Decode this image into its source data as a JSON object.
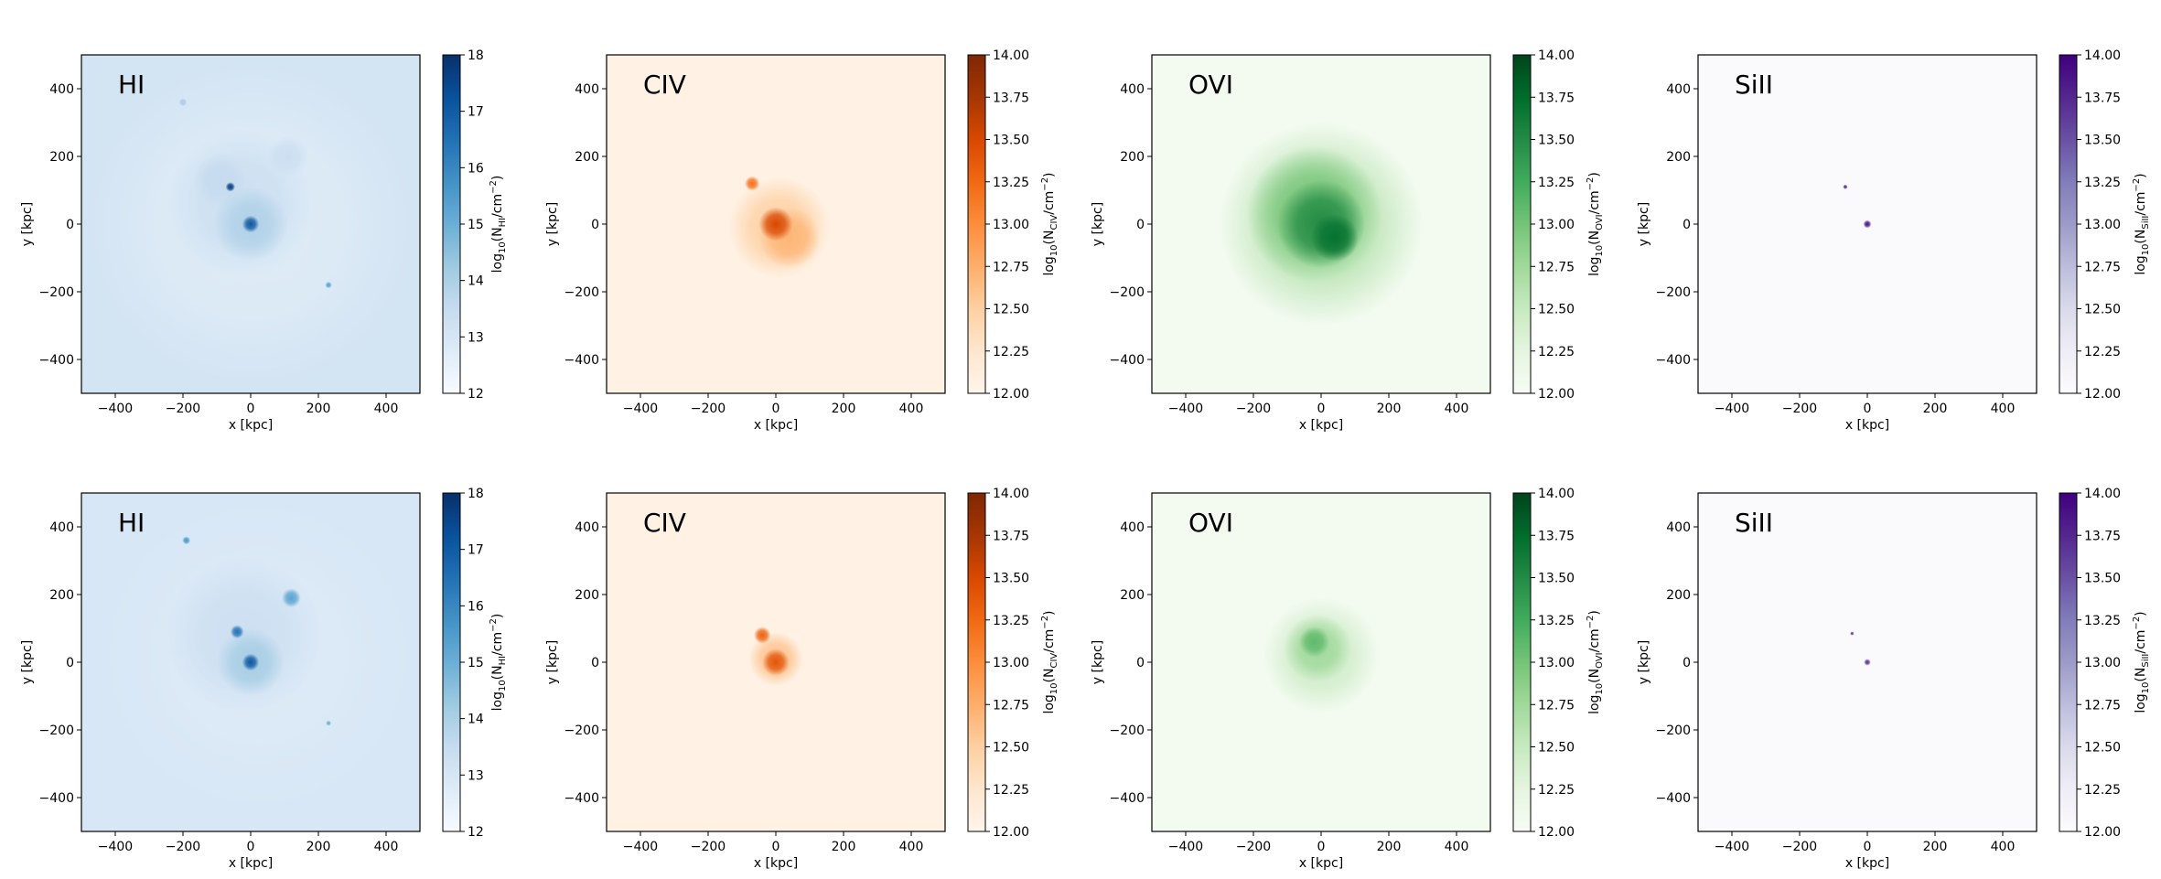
{
  "figure": {
    "rows": 2,
    "cols": 4
  },
  "colormaps": {
    "Blues": [
      "#f7fbff",
      "#deebf7",
      "#c6dbef",
      "#9ecae1",
      "#6baed6",
      "#4292c6",
      "#2171b5",
      "#08519c",
      "#08306b"
    ],
    "Oranges": [
      "#fff5eb",
      "#fee6ce",
      "#fdd0a2",
      "#fdae6b",
      "#fd8d3c",
      "#f16913",
      "#d94801",
      "#a63603",
      "#7f2704"
    ],
    "Greens": [
      "#f7fcf5",
      "#e5f5e0",
      "#c7e9c0",
      "#a1d99b",
      "#74c476",
      "#41ab5d",
      "#238b45",
      "#006d2c",
      "#00441b"
    ],
    "Purples": [
      "#fcfbfd",
      "#efedf5",
      "#dadaeb",
      "#bcbddc",
      "#9e9ac8",
      "#807dba",
      "#6a51a3",
      "#54278f",
      "#3f007d"
    ]
  },
  "chart_data": [
    {
      "type": "heatmap",
      "row": 0,
      "col": 0,
      "title": "HI",
      "cmap": "Blues",
      "xlabel": "x [kpc]",
      "ylabel": "y [kpc]",
      "xlim": [
        -500,
        500
      ],
      "ylim": [
        -500,
        500
      ],
      "xticks": [
        -400,
        -200,
        0,
        200,
        400
      ],
      "xtick_labels": [
        "−400",
        "−200",
        "0",
        "200",
        "400"
      ],
      "yticks": [
        -400,
        -200,
        0,
        200,
        400
      ],
      "ytick_labels": [
        "−400",
        "−200",
        "0",
        "200",
        "400"
      ],
      "colorbar": {
        "label": "log10(N_HI/cm^-2)",
        "label_main": "log",
        "label_sub1": "10",
        "label_mid": "(N",
        "label_sub2": "HI",
        "label_tail": "/cm",
        "label_sup": "−2",
        "label_end": ")",
        "range": [
          12,
          18
        ],
        "ticks": [
          12,
          13,
          14,
          15,
          16,
          17,
          18
        ],
        "tick_labels": [
          "12",
          "13",
          "14",
          "15",
          "16",
          "17",
          "18"
        ]
      },
      "background_level": 0.18,
      "features": [
        {
          "x": 0,
          "y": 0,
          "r": 480,
          "level": 0.12
        },
        {
          "x": -30,
          "y": 60,
          "r": 220,
          "level": 0.22
        },
        {
          "x": -90,
          "y": 130,
          "r": 80,
          "level": 0.25
        },
        {
          "x": 110,
          "y": 200,
          "r": 60,
          "level": 0.22
        },
        {
          "x": 0,
          "y": 0,
          "r": 110,
          "level": 0.32
        },
        {
          "x": 0,
          "y": 0,
          "r": 25,
          "level": 0.85
        },
        {
          "x": -60,
          "y": 110,
          "r": 14,
          "level": 0.95
        },
        {
          "x": 230,
          "y": -180,
          "r": 10,
          "level": 0.55
        },
        {
          "x": -200,
          "y": 360,
          "r": 12,
          "level": 0.35
        }
      ]
    },
    {
      "type": "heatmap",
      "row": 0,
      "col": 1,
      "title": "CIV",
      "cmap": "Oranges",
      "xlabel": "x [kpc]",
      "ylabel": "y [kpc]",
      "xlim": [
        -500,
        500
      ],
      "ylim": [
        -500,
        500
      ],
      "xticks": [
        -400,
        -200,
        0,
        200,
        400
      ],
      "xtick_labels": [
        "−400",
        "−200",
        "0",
        "200",
        "400"
      ],
      "yticks": [
        -400,
        -200,
        0,
        200,
        400
      ],
      "ytick_labels": [
        "−400",
        "−200",
        "0",
        "200",
        "400"
      ],
      "colorbar": {
        "label": "log10(N_CIV/cm^-2)",
        "label_main": "log",
        "label_sub1": "10",
        "label_mid": "(N",
        "label_sub2": "CIV",
        "label_tail": "/cm",
        "label_sup": "−2",
        "label_end": ")",
        "range": [
          12,
          14
        ],
        "ticks": [
          12,
          12.25,
          12.5,
          12.75,
          13,
          13.25,
          13.5,
          13.75,
          14
        ],
        "tick_labels": [
          "12.00",
          "12.25",
          "12.50",
          "12.75",
          "13.00",
          "13.25",
          "13.50",
          "13.75",
          "14.00"
        ]
      },
      "background_level": 0.03,
      "features": [
        {
          "x": 10,
          "y": -10,
          "r": 150,
          "level": 0.25
        },
        {
          "x": 40,
          "y": -40,
          "r": 90,
          "level": 0.35
        },
        {
          "x": 0,
          "y": 0,
          "r": 50,
          "level": 0.75
        },
        {
          "x": -70,
          "y": 120,
          "r": 22,
          "level": 0.6
        }
      ]
    },
    {
      "type": "heatmap",
      "row": 0,
      "col": 2,
      "title": "OVI",
      "cmap": "Greens",
      "xlabel": "x [kpc]",
      "ylabel": "y [kpc]",
      "xlim": [
        -500,
        500
      ],
      "ylim": [
        -500,
        500
      ],
      "xticks": [
        -400,
        -200,
        0,
        200,
        400
      ],
      "xtick_labels": [
        "−400",
        "−200",
        "0",
        "200",
        "400"
      ],
      "yticks": [
        -400,
        -200,
        0,
        200,
        400
      ],
      "ytick_labels": [
        "−400",
        "−200",
        "0",
        "200",
        "400"
      ],
      "colorbar": {
        "label": "log10(N_OVI/cm^-2)",
        "label_main": "log",
        "label_sub1": "10",
        "label_mid": "(N",
        "label_sub2": "OVI",
        "label_tail": "/cm",
        "label_sup": "−2",
        "label_end": ")",
        "range": [
          12,
          14
        ],
        "ticks": [
          12,
          12.25,
          12.5,
          12.75,
          13,
          13.25,
          13.5,
          13.75,
          14
        ],
        "tick_labels": [
          "12.00",
          "12.25",
          "12.50",
          "12.75",
          "13.00",
          "13.25",
          "13.50",
          "13.75",
          "14.00"
        ]
      },
      "background_level": 0.03,
      "features": [
        {
          "x": 0,
          "y": 0,
          "r": 300,
          "level": 0.3
        },
        {
          "x": -20,
          "y": 30,
          "r": 200,
          "level": 0.5
        },
        {
          "x": 0,
          "y": 0,
          "r": 130,
          "level": 0.75
        },
        {
          "x": 40,
          "y": -40,
          "r": 70,
          "level": 0.85
        }
      ]
    },
    {
      "type": "heatmap",
      "row": 0,
      "col": 3,
      "title": "SiII",
      "cmap": "Purples",
      "xlabel": "x [kpc]",
      "ylabel": "y [kpc]",
      "xlim": [
        -500,
        500
      ],
      "ylim": [
        -500,
        500
      ],
      "xticks": [
        -400,
        -200,
        0,
        200,
        400
      ],
      "xtick_labels": [
        "−400",
        "−200",
        "0",
        "200",
        "400"
      ],
      "yticks": [
        -400,
        -200,
        0,
        200,
        400
      ],
      "ytick_labels": [
        "−400",
        "−200",
        "0",
        "200",
        "400"
      ],
      "colorbar": {
        "label": "log10(N_SiII/cm^-2)",
        "label_main": "log",
        "label_sub1": "10",
        "label_mid": "(N",
        "label_sub2": "SiII",
        "label_tail": "/cm",
        "label_sup": "−2",
        "label_end": ")",
        "range": [
          12,
          14
        ],
        "ticks": [
          12,
          12.25,
          12.5,
          12.75,
          13,
          13.25,
          13.5,
          13.75,
          14
        ],
        "tick_labels": [
          "12.00",
          "12.25",
          "12.50",
          "12.75",
          "13.00",
          "13.25",
          "13.50",
          "13.75",
          "14.00"
        ]
      },
      "background_level": 0.02,
      "features": [
        {
          "x": 0,
          "y": 0,
          "r": 12,
          "level": 0.95
        },
        {
          "x": -65,
          "y": 110,
          "r": 7,
          "level": 0.9
        }
      ]
    },
    {
      "type": "heatmap",
      "row": 1,
      "col": 0,
      "title": "HI",
      "cmap": "Blues",
      "xlabel": "x [kpc]",
      "ylabel": "y [kpc]",
      "xlim": [
        -500,
        500
      ],
      "ylim": [
        -500,
        500
      ],
      "xticks": [
        -400,
        -200,
        0,
        200,
        400
      ],
      "xtick_labels": [
        "−400",
        "−200",
        "0",
        "200",
        "400"
      ],
      "yticks": [
        -400,
        -200,
        0,
        200,
        400
      ],
      "ytick_labels": [
        "−400",
        "−200",
        "0",
        "200",
        "400"
      ],
      "colorbar": {
        "label": "log10(N_HI/cm^-2)",
        "label_main": "log",
        "label_sub1": "10",
        "label_mid": "(N",
        "label_sub2": "HI",
        "label_tail": "/cm",
        "label_sup": "−2",
        "label_end": ")",
        "range": [
          12,
          18
        ],
        "ticks": [
          12,
          13,
          14,
          15,
          16,
          17,
          18
        ],
        "tick_labels": [
          "12",
          "13",
          "14",
          "15",
          "16",
          "17",
          "18"
        ]
      },
      "background_level": 0.16,
      "features": [
        {
          "x": 20,
          "y": 20,
          "r": 470,
          "level": 0.13
        },
        {
          "x": -20,
          "y": 80,
          "r": 230,
          "level": 0.22
        },
        {
          "x": 0,
          "y": 0,
          "r": 100,
          "level": 0.35
        },
        {
          "x": 0,
          "y": 0,
          "r": 25,
          "level": 0.85
        },
        {
          "x": -40,
          "y": 90,
          "r": 20,
          "level": 0.75
        },
        {
          "x": 120,
          "y": 190,
          "r": 28,
          "level": 0.55
        },
        {
          "x": -190,
          "y": 360,
          "r": 12,
          "level": 0.6
        },
        {
          "x": 230,
          "y": -180,
          "r": 8,
          "level": 0.5
        }
      ]
    },
    {
      "type": "heatmap",
      "row": 1,
      "col": 1,
      "title": "CIV",
      "cmap": "Oranges",
      "xlabel": "x [kpc]",
      "ylabel": "y [kpc]",
      "xlim": [
        -500,
        500
      ],
      "ylim": [
        -500,
        500
      ],
      "xticks": [
        -400,
        -200,
        0,
        200,
        400
      ],
      "xtick_labels": [
        "−400",
        "−200",
        "0",
        "200",
        "400"
      ],
      "yticks": [
        -400,
        -200,
        0,
        200,
        400
      ],
      "ytick_labels": [
        "−400",
        "−200",
        "0",
        "200",
        "400"
      ],
      "colorbar": {
        "label": "log10(N_CIV/cm^-2)",
        "label_main": "log",
        "label_sub1": "10",
        "label_mid": "(N",
        "label_sub2": "CIV",
        "label_tail": "/cm",
        "label_sup": "−2",
        "label_end": ")",
        "range": [
          12,
          14
        ],
        "ticks": [
          12,
          12.25,
          12.5,
          12.75,
          13,
          13.25,
          13.5,
          13.75,
          14
        ],
        "tick_labels": [
          "12.00",
          "12.25",
          "12.50",
          "12.75",
          "13.00",
          "13.25",
          "13.50",
          "13.75",
          "14.00"
        ]
      },
      "background_level": 0.03,
      "features": [
        {
          "x": 0,
          "y": 10,
          "r": 80,
          "level": 0.3
        },
        {
          "x": 0,
          "y": 0,
          "r": 40,
          "level": 0.7
        },
        {
          "x": -40,
          "y": 80,
          "r": 25,
          "level": 0.65
        }
      ]
    },
    {
      "type": "heatmap",
      "row": 1,
      "col": 2,
      "title": "OVI",
      "cmap": "Greens",
      "xlabel": "x [kpc]",
      "ylabel": "y [kpc]",
      "xlim": [
        -500,
        500
      ],
      "ylim": [
        -500,
        500
      ],
      "xticks": [
        -400,
        -200,
        0,
        200,
        400
      ],
      "xtick_labels": [
        "−400",
        "−200",
        "0",
        "200",
        "400"
      ],
      "yticks": [
        -400,
        -200,
        0,
        200,
        400
      ],
      "ytick_labels": [
        "−400",
        "−200",
        "0",
        "200",
        "400"
      ],
      "colorbar": {
        "label": "log10(N_OVI/cm^-2)",
        "label_main": "log",
        "label_sub1": "10",
        "label_mid": "(N",
        "label_sub2": "OVI",
        "label_tail": "/cm",
        "label_sup": "−2",
        "label_end": ")",
        "range": [
          12,
          14
        ],
        "ticks": [
          12,
          12.25,
          12.5,
          12.75,
          13,
          13.25,
          13.5,
          13.75,
          14
        ],
        "tick_labels": [
          "12.00",
          "12.25",
          "12.50",
          "12.75",
          "13.00",
          "13.25",
          "13.50",
          "13.75",
          "14.00"
        ]
      },
      "background_level": 0.03,
      "features": [
        {
          "x": 0,
          "y": 20,
          "r": 170,
          "level": 0.22
        },
        {
          "x": -10,
          "y": 40,
          "r": 100,
          "level": 0.38
        },
        {
          "x": -20,
          "y": 60,
          "r": 45,
          "level": 0.55
        }
      ]
    },
    {
      "type": "heatmap",
      "row": 1,
      "col": 3,
      "title": "SiII",
      "cmap": "Purples",
      "xlabel": "x [kpc]",
      "ylabel": "y [kpc]",
      "xlim": [
        -500,
        500
      ],
      "ylim": [
        -500,
        500
      ],
      "xticks": [
        -400,
        -200,
        0,
        200,
        400
      ],
      "xtick_labels": [
        "−400",
        "−200",
        "0",
        "200",
        "400"
      ],
      "yticks": [
        -400,
        -200,
        0,
        200,
        400
      ],
      "ytick_labels": [
        "−400",
        "−200",
        "0",
        "200",
        "400"
      ],
      "colorbar": {
        "label": "log10(N_SiII/cm^-2)",
        "label_main": "log",
        "label_sub1": "10",
        "label_mid": "(N",
        "label_sub2": "SiII",
        "label_tail": "/cm",
        "label_sup": "−2",
        "label_end": ")",
        "range": [
          12,
          14
        ],
        "ticks": [
          12,
          12.25,
          12.5,
          12.75,
          13,
          13.25,
          13.5,
          13.75,
          14
        ],
        "tick_labels": [
          "12.00",
          "12.25",
          "12.50",
          "12.75",
          "13.00",
          "13.25",
          "13.50",
          "13.75",
          "14.00"
        ]
      },
      "background_level": 0.02,
      "features": [
        {
          "x": 0,
          "y": 0,
          "r": 10,
          "level": 0.85
        },
        {
          "x": -45,
          "y": 85,
          "r": 6,
          "level": 0.85
        }
      ]
    }
  ]
}
